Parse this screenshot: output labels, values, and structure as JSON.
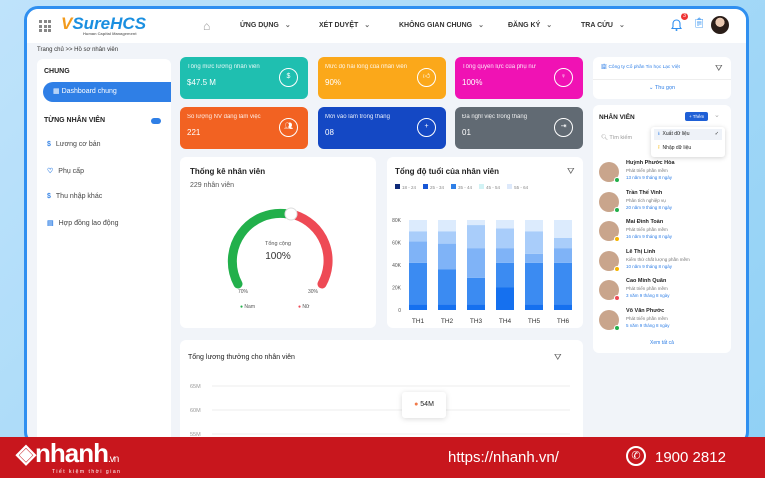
{
  "header": {
    "logo": "SureHCS",
    "logo_sub": "Human Capital Management",
    "nav": [
      "ỨNG DỤNG",
      "XÉT DUYỆT",
      "KHÔNG GIAN CHUNG",
      "ĐĂNG KÝ",
      "TRA CỨU"
    ],
    "notif_count": "3"
  },
  "breadcrumb": "Trang chủ >> Hồ sơ nhân viên",
  "sidebar": {
    "section1": "CHUNG",
    "active": "Dashboard chung",
    "section2": "TỪNG NHÂN VIÊN",
    "items": [
      {
        "label": "Lương cơ bản",
        "icon": "dollar-icon"
      },
      {
        "label": "Phụ cấp",
        "icon": "heart-icon"
      },
      {
        "label": "Thu nhập khác",
        "icon": "dollar-icon"
      },
      {
        "label": "Hợp đồng lao động",
        "icon": "document-icon"
      }
    ]
  },
  "cards": [
    {
      "title": "Tổng mức lương nhân viên",
      "value": "$47.5 M",
      "color": "#1fbfb0"
    },
    {
      "title": "Mức độ hài lòng của nhân viên",
      "value": "90%",
      "color": "#fba81a"
    },
    {
      "title": "Tổng quyền lực của phụ nữ",
      "value": "100%",
      "color": "#f012b4"
    },
    {
      "title": "Số lượng NV đang làm việc",
      "value": "221",
      "color": "#f26222"
    },
    {
      "title": "Mới vào làm trong tháng",
      "value": "08",
      "color": "#1448c4"
    },
    {
      "title": "Đã nghỉ việc trong tháng",
      "value": "01",
      "color": "#616a73"
    }
  ],
  "stats": {
    "title": "Thống kê nhân viên",
    "count": "229 nhân viên",
    "center_label": "Tổng cộng",
    "center_value": "100%",
    "male_pct": "70%",
    "female_pct": "30%",
    "male_label": "Nam",
    "female_label": "Nữ",
    "male_color": "#22b04b",
    "female_color": "#ee4a55"
  },
  "chart_data": [
    {
      "type": "bar",
      "stacked": true,
      "title": "Tổng độ tuổi của nhân viên",
      "categories": [
        "TH1",
        "TH2",
        "TH3",
        "TH4",
        "TH5",
        "TH6"
      ],
      "yticks": [
        "0",
        "20K",
        "40K",
        "60K",
        "80K"
      ],
      "ylim": [
        0,
        80000
      ],
      "series": [
        {
          "name": "18 - 24",
          "color": "#1570ef",
          "values": [
            5000,
            5000,
            5000,
            20000,
            5000,
            5000
          ]
        },
        {
          "name": "25 - 34",
          "color": "#3b8bf2",
          "values": [
            37000,
            31000,
            23500,
            22000,
            37000,
            37000
          ]
        },
        {
          "name": "35 - 44",
          "color": "#7fb3f7",
          "values": [
            19000,
            23000,
            26500,
            13000,
            8000,
            13000
          ]
        },
        {
          "name": "45 - 54",
          "color": "#a9cdfa",
          "values": [
            9000,
            11000,
            20500,
            17600,
            20000,
            9000
          ]
        },
        {
          "name": "55 - 64",
          "color": "#dcebfd",
          "values": [
            10000,
            10000,
            4500,
            7400,
            10000,
            16000
          ]
        }
      ],
      "legend_colors": [
        "#0f2a78",
        "#1656d6",
        "#2f7fe6",
        "#d2f3f5",
        "#dde9fb"
      ]
    },
    {
      "type": "line",
      "title": "Tổng lương thưởng cho nhân viên",
      "yticks": [
        "65M",
        "60M",
        "55M"
      ],
      "tooltip": "54M",
      "point_color": "#f07a4a"
    }
  ],
  "company": {
    "name": "Công ty Cổ phần Tin học Lạc Việt",
    "collapse": "Thu gọn"
  },
  "employees": {
    "title": "NHÂN VIÊN",
    "add": "+ Thêm",
    "search_placeholder": "Tìm kiếm",
    "menu": [
      "Xuất dữ liệu",
      "Nhập dữ liệu"
    ],
    "view_all": "Xem tất cả",
    "list": [
      {
        "name": "Huỳnh Phước Hòa",
        "role": "Phát triển phần mềm",
        "tenure": "13 năm 9 tháng 8 ngày",
        "status": "#22b04b"
      },
      {
        "name": "Trần Thế Vinh",
        "role": "Phân tích nghiệp vụ",
        "tenure": "20 năm 9 tháng 8 ngày",
        "status": "#22b04b"
      },
      {
        "name": "Mai Đình Toàn",
        "role": "Phát triển phần mềm",
        "tenure": "16 năm 9 tháng 8 ngày",
        "status": "#f5b400"
      },
      {
        "name": "Lê Thị Linh",
        "role": "Kiểm thử chất lượng phần mềm",
        "tenure": "10 năm 9 tháng 8 ngày",
        "status": "#f5b400"
      },
      {
        "name": "Cao Minh Quân",
        "role": "Phát triển phần mềm",
        "tenure": "3 năm 9 tháng 8 ngày",
        "status": "#ee4a55"
      },
      {
        "name": "Võ Văn Phước",
        "role": "Phát triển phần mềm",
        "tenure": "5 năm 9 tháng 8 ngày",
        "status": "#22b04b"
      }
    ]
  },
  "banner": {
    "brand": "nhanh.vn",
    "slogan": "Tiết kiệm thời gian",
    "url": "https://nhanh.vn/",
    "phone": "1900 2812"
  }
}
